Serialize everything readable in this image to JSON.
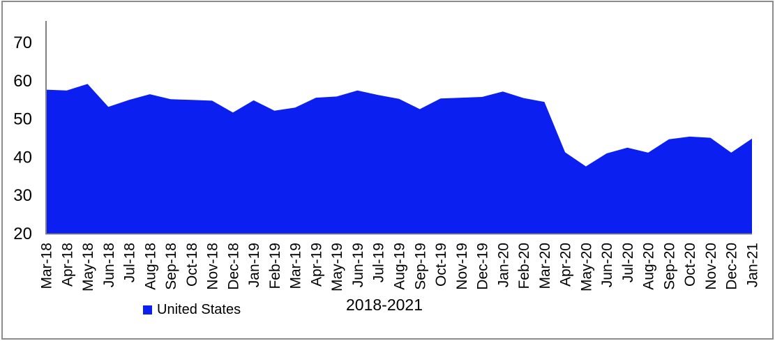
{
  "chart_data": {
    "type": "area",
    "title": "",
    "xlabel": "2018-2021",
    "ylabel": "",
    "categories": [
      "Mar-18",
      "Apr-18",
      "May-18",
      "Jun-18",
      "Jul-18",
      "Aug-18",
      "Sep-18",
      "Oct-18",
      "Nov-18",
      "Dec-18",
      "Jan-19",
      "Feb-19",
      "Mar-19",
      "Apr-19",
      "May-19",
      "Jun-19",
      "Jul-19",
      "Aug-19",
      "Sep-19",
      "Oct-19",
      "Nov-19",
      "Dec-19",
      "Jan-20",
      "Feb-20",
      "Mar-20",
      "Apr-20",
      "May-20",
      "Jun-20",
      "Jul-20",
      "Aug-20",
      "Sep-20",
      "Oct-20",
      "Nov-20",
      "Dec-20",
      "Jan-21"
    ],
    "series": [
      {
        "name": "United States",
        "color": "#0b1ff0",
        "values": [
          57.7,
          57.5,
          59.2,
          53.2,
          55.0,
          56.5,
          55.2,
          55.0,
          54.8,
          51.7,
          54.9,
          52.2,
          53.0,
          55.6,
          55.9,
          57.5,
          56.3,
          55.3,
          52.6,
          55.4,
          55.6,
          55.8,
          57.2,
          55.5,
          54.5,
          41.3,
          37.6,
          41.0,
          42.5,
          41.2,
          44.7,
          45.4,
          45.1,
          41.2,
          44.9
        ]
      }
    ],
    "ylim": [
      20,
      75.7
    ],
    "yticks": [
      70,
      60,
      50,
      40,
      30,
      20
    ],
    "baseline": 20,
    "grid": false,
    "legend_position": "bottom"
  },
  "legend": {
    "items": [
      {
        "label": "United States",
        "color": "#0b1ff0"
      }
    ]
  },
  "axis_title": "2018-2021",
  "colors": {
    "series_fill": "#0b1ff0",
    "axis_line": "#808080",
    "frame_border": "#8c8c8c",
    "text": "#000000",
    "background": "#ffffff"
  }
}
